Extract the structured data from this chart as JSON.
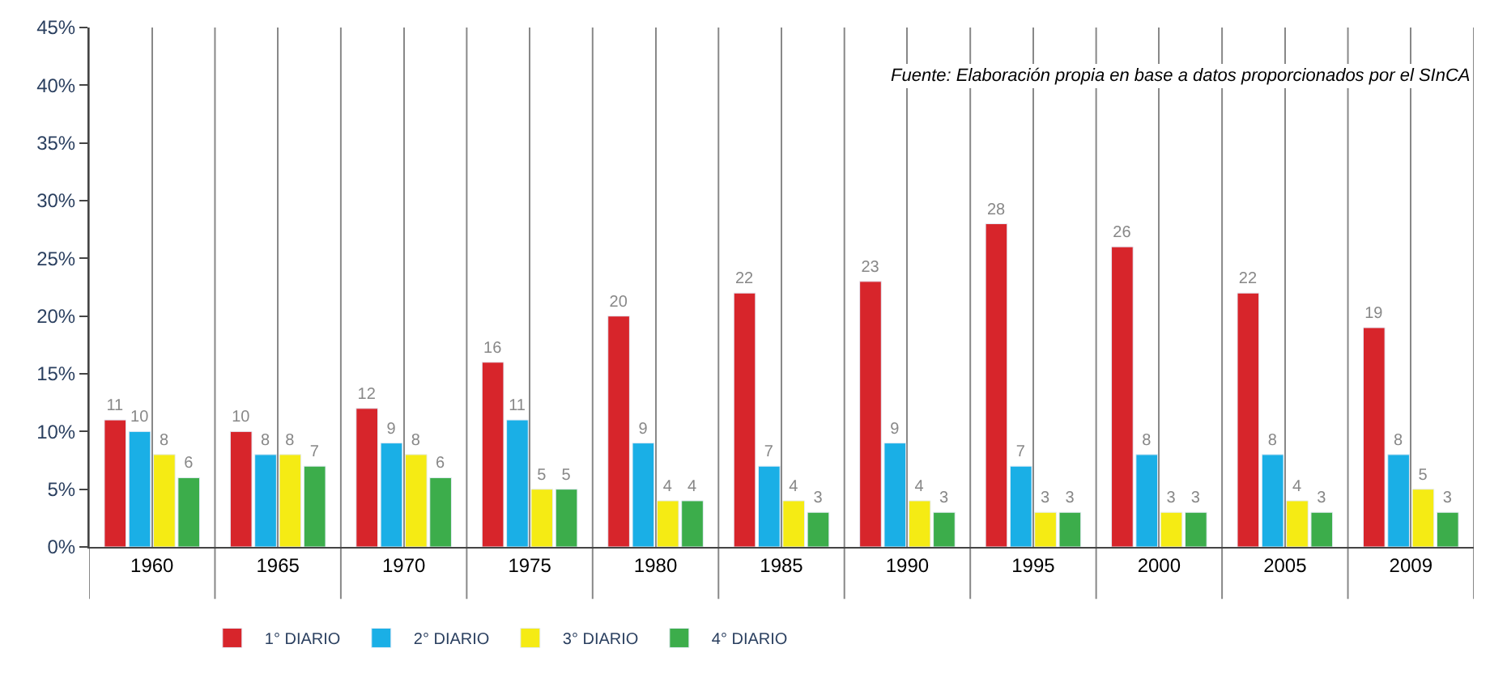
{
  "chart_data": {
    "type": "bar",
    "categories": [
      "1960",
      "1965",
      "1970",
      "1975",
      "1980",
      "1985",
      "1990",
      "1995",
      "2000",
      "2005",
      "2009"
    ],
    "series": [
      {
        "name": "1° DIARIO",
        "color": "#d7252b",
        "values": [
          11,
          10,
          12,
          16,
          20,
          22,
          23,
          28,
          26,
          22,
          19
        ]
      },
      {
        "name": "2° DIARIO",
        "color": "#1aafe6",
        "values": [
          10,
          8,
          9,
          11,
          9,
          7,
          9,
          7,
          8,
          8,
          8
        ]
      },
      {
        "name": "3° DIARIO",
        "color": "#f5eb14",
        "values": [
          8,
          8,
          8,
          5,
          4,
          4,
          4,
          3,
          3,
          4,
          5
        ]
      },
      {
        "name": "4° DIARIO",
        "color": "#3cad4b",
        "values": [
          6,
          7,
          6,
          5,
          4,
          3,
          3,
          3,
          3,
          3,
          3
        ]
      }
    ],
    "ylim": [
      0,
      45
    ],
    "yticks": [
      {
        "value": 0,
        "label": "0%"
      },
      {
        "value": 5,
        "label": "5%"
      },
      {
        "value": 10,
        "label": "10%"
      },
      {
        "value": 15,
        "label": "15%"
      },
      {
        "value": 20,
        "label": "20%"
      },
      {
        "value": 25,
        "label": "25%"
      },
      {
        "value": 30,
        "label": "30%"
      },
      {
        "value": 35,
        "label": "35%"
      },
      {
        "value": 40,
        "label": "40%"
      },
      {
        "value": 45,
        "label": "45%"
      }
    ],
    "annotations": [
      "Fuente: Elaboración propia en base a datos proporcionados por el SInCA"
    ],
    "data_labels": true,
    "grid": "x",
    "legend": "bottom"
  }
}
